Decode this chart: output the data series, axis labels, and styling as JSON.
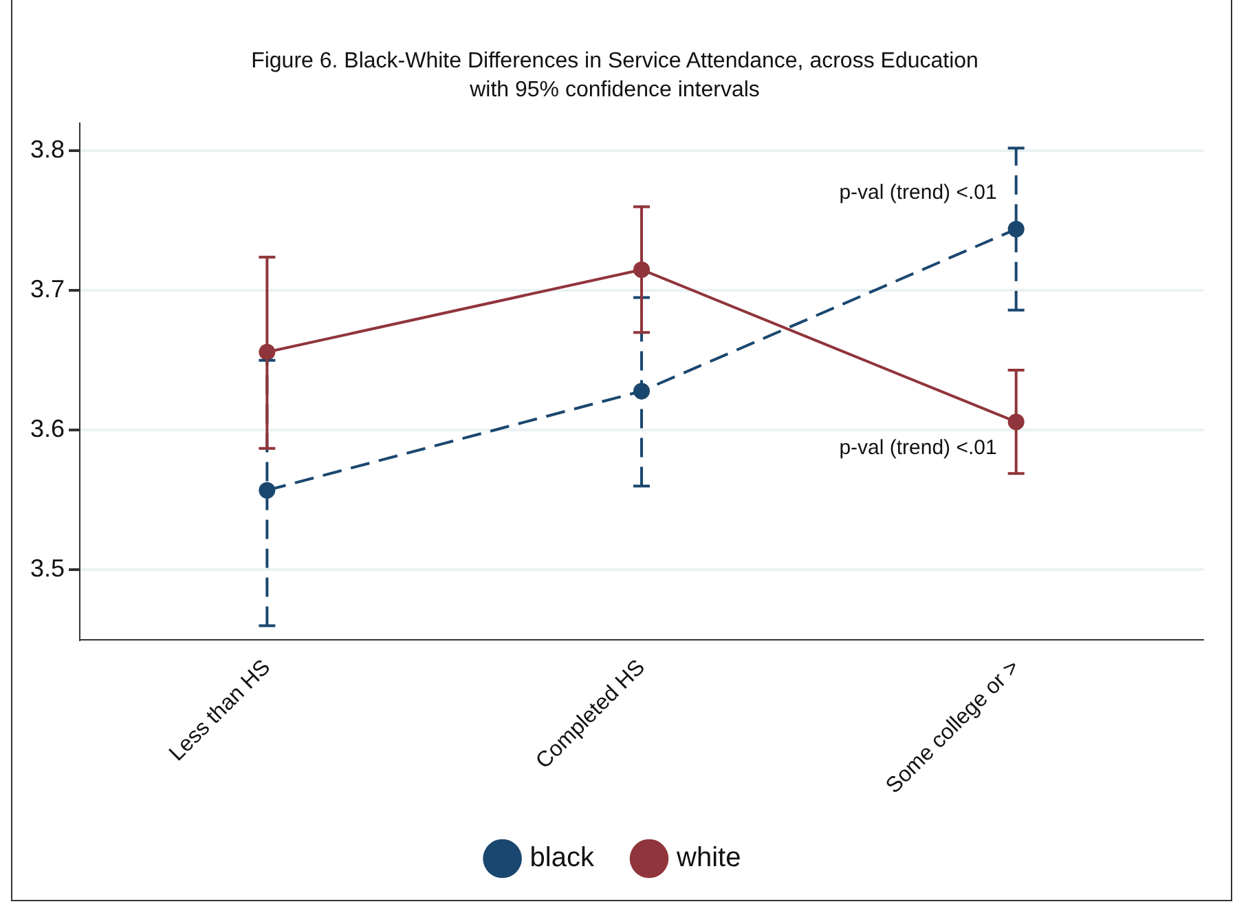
{
  "chart_data": {
    "type": "line",
    "title": "Figure 6. Black-White Differences in Service Attendance, across Education",
    "subtitle": "with 95% confidence intervals",
    "categories": [
      "Less than HS",
      "Completed HS",
      "Some college or >"
    ],
    "series": [
      {
        "name": "black",
        "color": "#1a476f",
        "values": [
          3.557,
          3.628,
          3.744
        ],
        "errors": [
          [
            3.46,
            3.65
          ],
          [
            3.56,
            3.695
          ],
          [
            3.686,
            3.802
          ]
        ],
        "line_style": "dashed"
      },
      {
        "name": "white",
        "color": "#90353b",
        "values": [
          3.656,
          3.715,
          3.606
        ],
        "errors": [
          [
            3.587,
            3.724
          ],
          [
            3.67,
            3.76
          ],
          [
            3.569,
            3.643
          ]
        ],
        "line_style": "solid"
      }
    ],
    "ylim": [
      3.45,
      3.82
    ],
    "yticks": [
      3.5,
      3.6,
      3.7,
      3.8
    ],
    "grid": "y",
    "legend": "bottom",
    "marker": "circle",
    "annotations": [
      {
        "text": "p-val (trend) <.01",
        "x": "Some college or >",
        "y": 3.77
      },
      {
        "text": "p-val (trend) <.01",
        "x": "Some college or >",
        "y": 3.587
      }
    ]
  }
}
